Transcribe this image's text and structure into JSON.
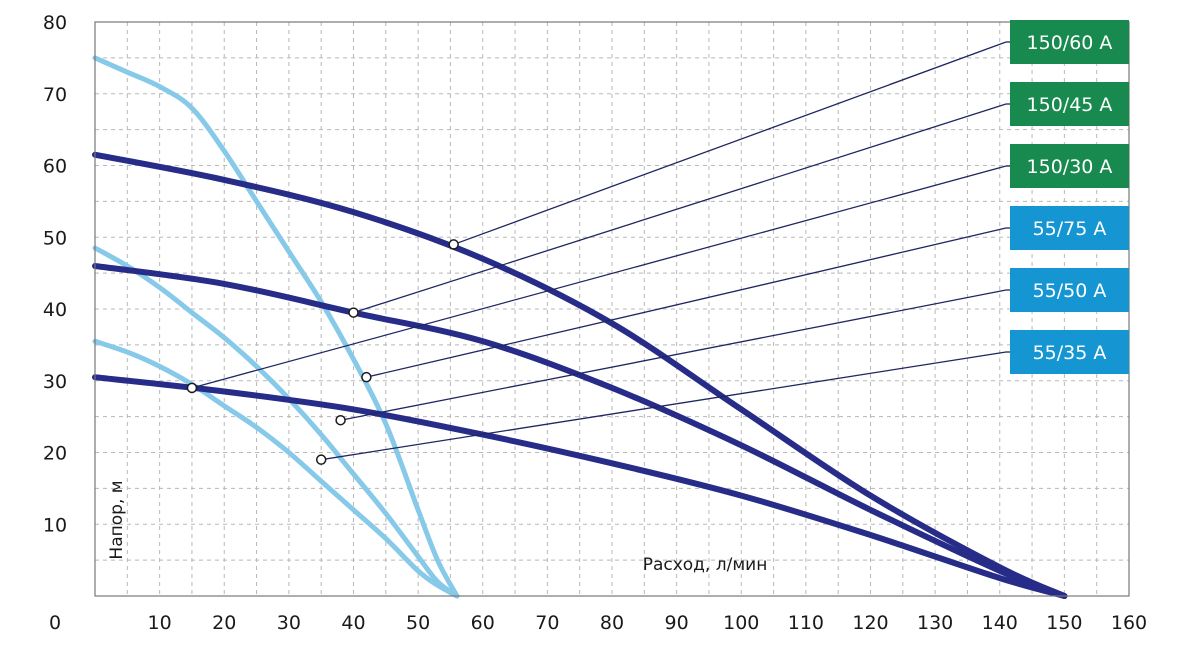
{
  "chart_data": {
    "type": "line",
    "title": "",
    "xlabel": "Расход, л/мин",
    "ylabel": "Напор, м",
    "origin_label": "0",
    "xlim": [
      0,
      160
    ],
    "ylim": [
      0,
      80
    ],
    "x_ticks": [
      10,
      20,
      30,
      40,
      50,
      60,
      70,
      80,
      90,
      100,
      110,
      120,
      130,
      140,
      150,
      160
    ],
    "y_ticks": [
      10,
      20,
      30,
      40,
      50,
      60,
      70,
      80
    ],
    "grid": true,
    "legend_position": "right",
    "colors": {
      "dark_series": "#262c87",
      "light_series": "#87c9e8",
      "green_label": "#188a4f",
      "blue_label": "#1596d3",
      "leader_line": "#1f2660",
      "grid": "#b8b8b8"
    },
    "series": [
      {
        "name": "150/60 А",
        "group": "dark",
        "x": [
          0,
          20,
          40,
          60,
          80,
          100,
          120,
          140,
          150
        ],
        "y": [
          61.5,
          58,
          53.5,
          47,
          38,
          26,
          14,
          4,
          0
        ],
        "marker": [
          55.5,
          49
        ]
      },
      {
        "name": "150/45 А",
        "group": "dark",
        "x": [
          0,
          20,
          40,
          60,
          80,
          100,
          120,
          140,
          150
        ],
        "y": [
          46,
          43.5,
          39.5,
          35.5,
          29,
          21,
          12,
          3.5,
          0
        ],
        "marker": [
          40,
          39.5
        ]
      },
      {
        "name": "150/30 А",
        "group": "dark",
        "x": [
          0,
          20,
          40,
          60,
          80,
          100,
          120,
          140,
          150
        ],
        "y": [
          30.5,
          28.5,
          26,
          22.5,
          18.5,
          14,
          8.5,
          2.5,
          0
        ],
        "marker": [
          15,
          29
        ]
      },
      {
        "name": "55/75 А",
        "group": "light",
        "x": [
          0,
          5,
          10,
          15,
          20,
          25,
          30,
          35,
          40,
          45,
          50,
          53,
          56
        ],
        "y": [
          75,
          73,
          71,
          68,
          62,
          55,
          48,
          41,
          33,
          24,
          12,
          5,
          0
        ],
        "marker": [
          42,
          30.5
        ]
      },
      {
        "name": "55/50 А",
        "group": "light",
        "x": [
          0,
          5,
          10,
          15,
          20,
          25,
          30,
          35,
          40,
          45,
          50,
          53,
          56
        ],
        "y": [
          48.5,
          46,
          43,
          39.5,
          36,
          32,
          27.5,
          22.5,
          17,
          11.5,
          5.5,
          2,
          0
        ],
        "marker": [
          38,
          24.5
        ]
      },
      {
        "name": "55/35 А",
        "group": "light",
        "x": [
          0,
          5,
          10,
          15,
          20,
          25,
          30,
          35,
          40,
          45,
          50,
          53,
          56
        ],
        "y": [
          35.5,
          34,
          32,
          29.5,
          26.5,
          23.5,
          20,
          16,
          12,
          8,
          3.5,
          1.5,
          0
        ],
        "marker": [
          35,
          19
        ]
      }
    ]
  }
}
